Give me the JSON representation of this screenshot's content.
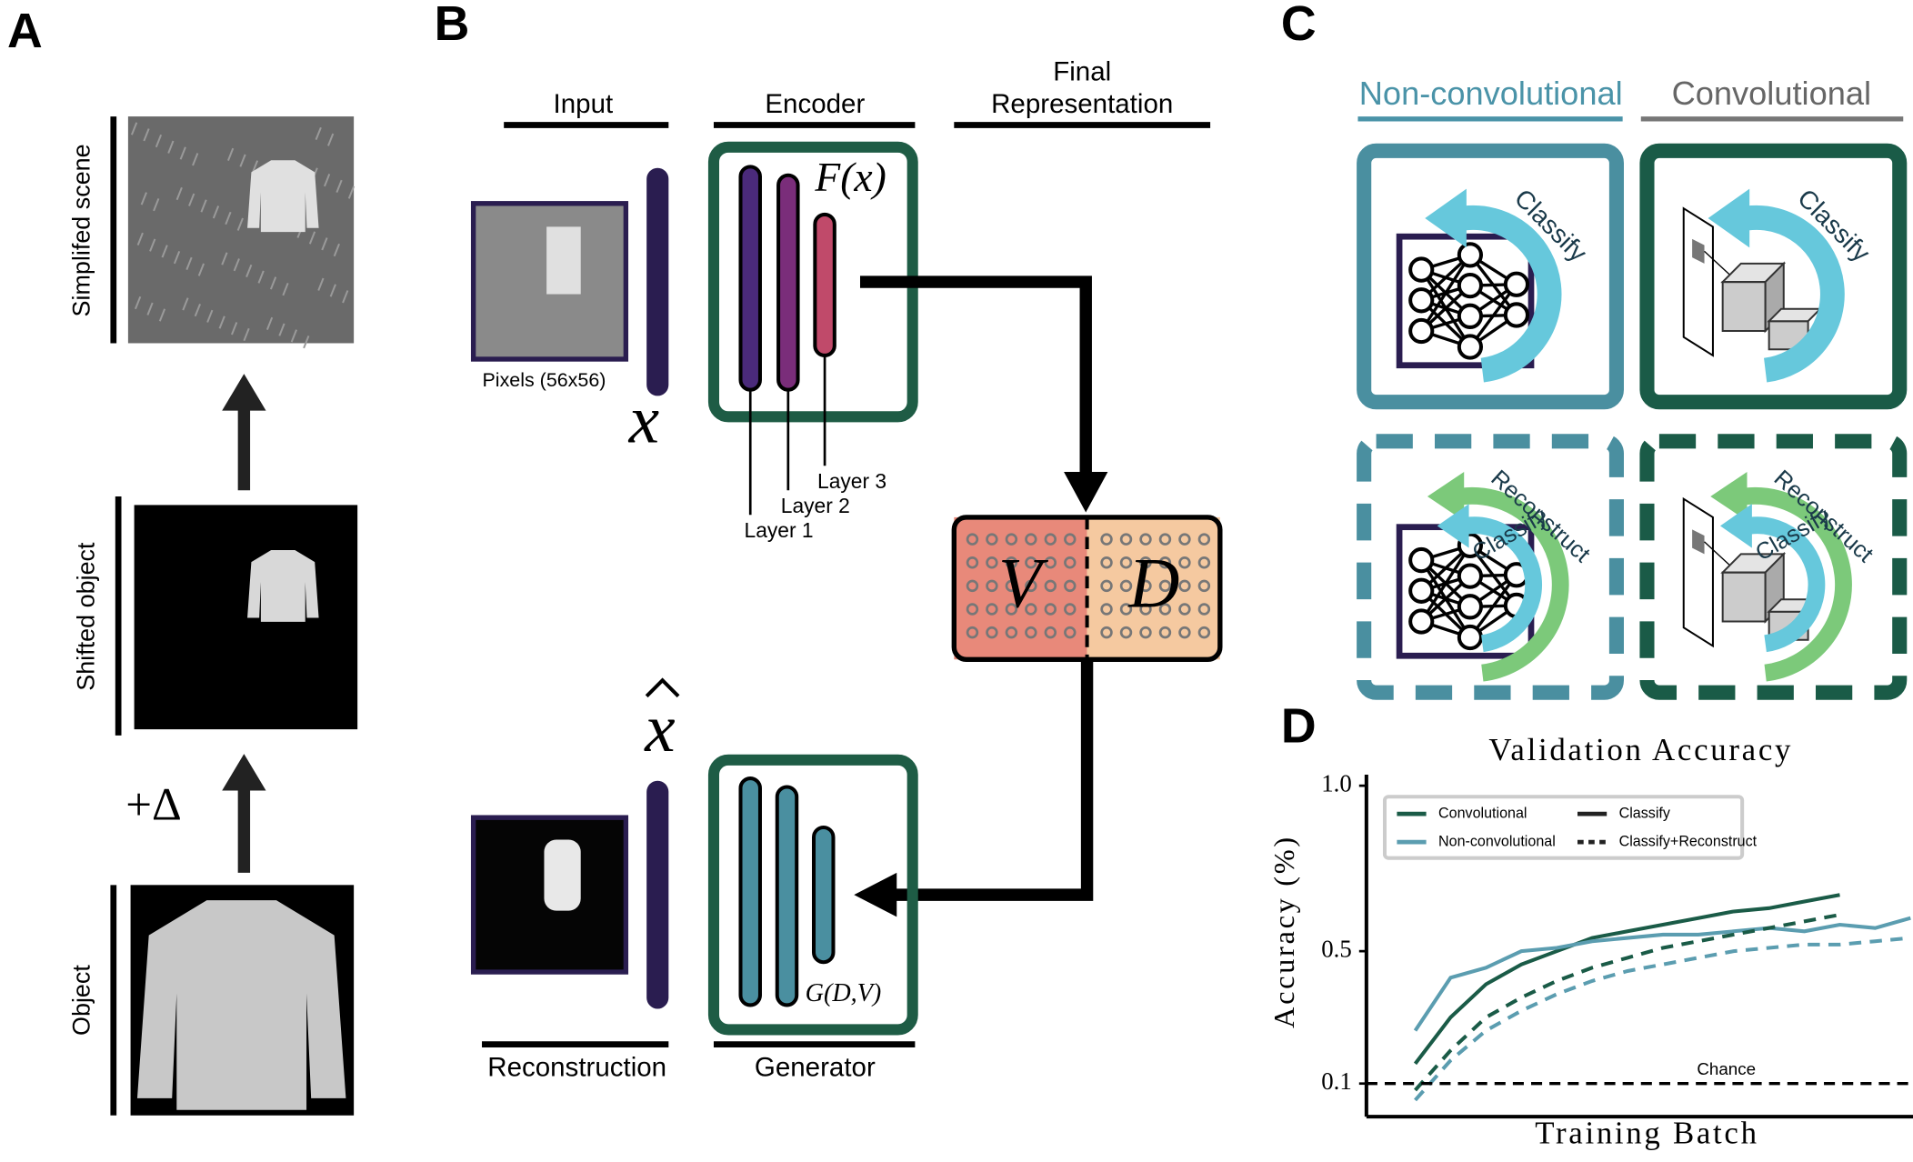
{
  "panel_a": {
    "letter": "A",
    "labels": [
      "Simplifed scene",
      "Shifted object",
      "Object"
    ],
    "delta": "+Δ"
  },
  "panel_b": {
    "letter": "B",
    "headers": [
      "Input",
      "Encoder",
      "Final",
      "Representation"
    ],
    "pixels": "Pixels (56x56)",
    "x": "x",
    "fx": "F(x)",
    "layers": [
      "Layer 3",
      "Layer 2",
      "Layer 1"
    ],
    "v": "V",
    "d": "D",
    "x_hat": "x",
    "gdv": "G(D,V)",
    "footers": [
      "Reconstruction",
      "Generator"
    ]
  },
  "panel_c": {
    "letter": "C",
    "columns": [
      "Non-convolutional",
      "Convolutional"
    ],
    "boxes": [
      {
        "label": "Classify"
      },
      {
        "label": "Classify"
      },
      {
        "label": "Classify",
        "label2": "Reconstruct"
      },
      {
        "label": "Classify",
        "label2": "Reconstruct"
      }
    ]
  },
  "chart_data": {
    "type": "line",
    "letter": "D",
    "title": "Validation Accuracy",
    "xlabel": "Training Batch",
    "ylabel": "Accuracy (%)",
    "ylim": [
      0,
      1.0
    ],
    "yticks": [
      {
        "value": 1.0,
        "label": "1.0"
      },
      0.5,
      0.1
    ],
    "chance": {
      "label": "Chance",
      "value": 0.1
    },
    "legend": [
      {
        "label": "Convolutional",
        "color": "#1a5b47"
      },
      {
        "label": "Classify",
        "dash": "none"
      },
      {
        "label": "Non-convolutional",
        "color": "#5b9db0"
      },
      {
        "label": "Classify+Reconstruct",
        "dash": "5 4"
      }
    ],
    "series": [
      {
        "color": "#1a5b47",
        "dash": "none",
        "values": [
          0.16,
          0.3,
          0.4,
          0.46,
          0.5,
          0.54,
          0.56,
          0.58,
          0.6,
          0.62,
          0.63,
          0.65,
          0.67
        ]
      },
      {
        "color": "#5b9db0",
        "dash": "none",
        "values": [
          0.26,
          0.42,
          0.45,
          0.5,
          0.51,
          0.53,
          0.54,
          0.55,
          0.55,
          0.56,
          0.57,
          0.56,
          0.58,
          0.57,
          0.6
        ]
      },
      {
        "color": "#1a5b47",
        "dash": "10 7",
        "values": [
          0.08,
          0.2,
          0.3,
          0.36,
          0.41,
          0.45,
          0.48,
          0.51,
          0.53,
          0.55,
          0.57,
          0.59,
          0.61
        ]
      },
      {
        "color": "#5b9db0",
        "dash": "10 7",
        "values": [
          0.05,
          0.17,
          0.26,
          0.32,
          0.37,
          0.41,
          0.44,
          0.46,
          0.48,
          0.5,
          0.51,
          0.52,
          0.52,
          0.53,
          0.54
        ]
      }
    ]
  }
}
